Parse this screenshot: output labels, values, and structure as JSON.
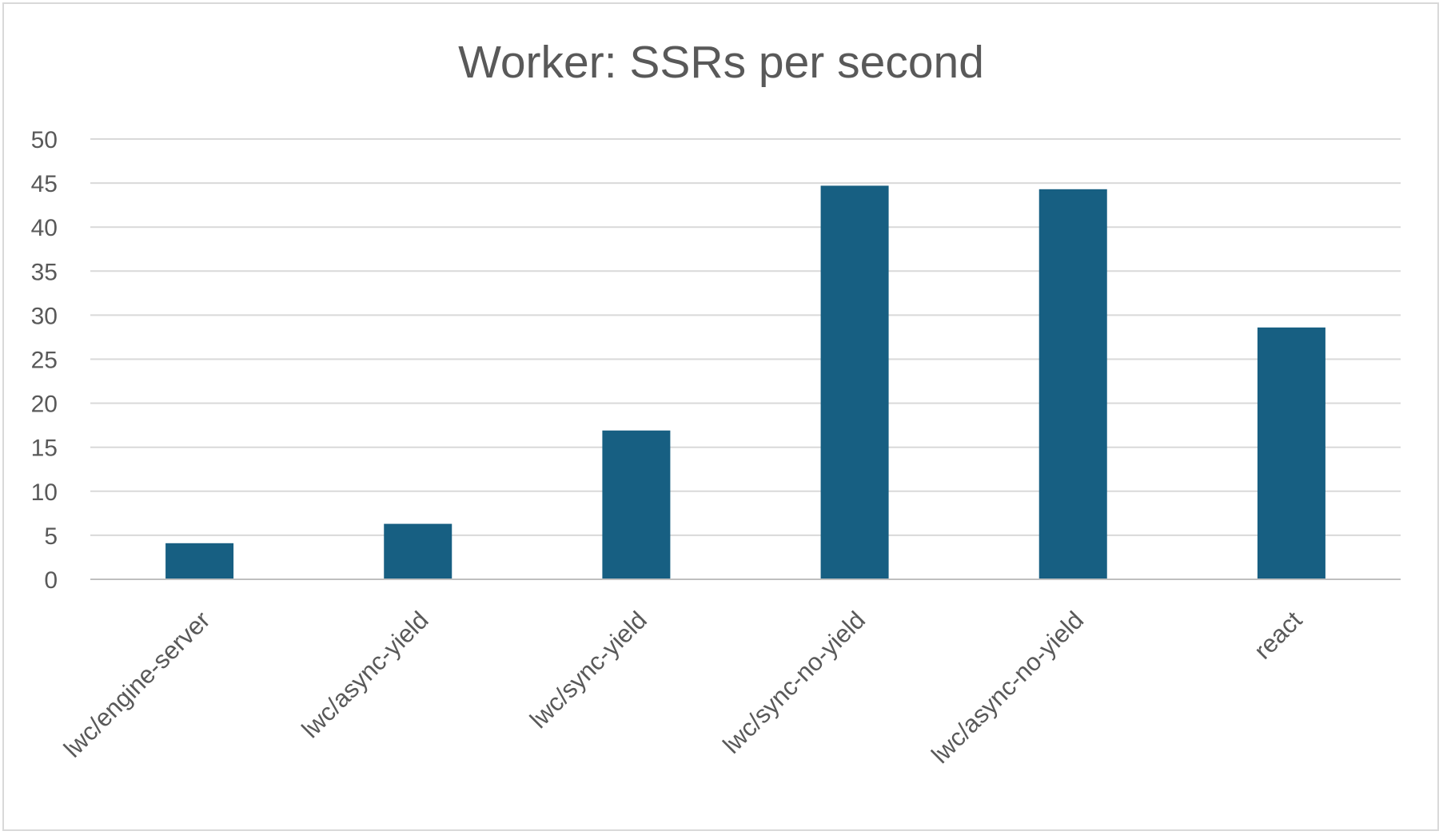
{
  "chart_data": {
    "type": "bar",
    "title": "Worker: SSRs per second",
    "categories": [
      "lwc/engine-server",
      "lwc/async-yield",
      "lwc/sync-yield",
      "lwc/sync-no-yield",
      "lwc/async-no-yield",
      "react"
    ],
    "values": [
      4.1,
      6.3,
      16.9,
      44.7,
      44.3,
      28.6
    ],
    "ylim": [
      0,
      50
    ],
    "yticks": [
      "0",
      "5",
      "10",
      "15",
      "20",
      "25",
      "30",
      "35",
      "40",
      "45",
      "50"
    ],
    "grid": true,
    "legend": "none",
    "bar_color": "#175f82"
  }
}
